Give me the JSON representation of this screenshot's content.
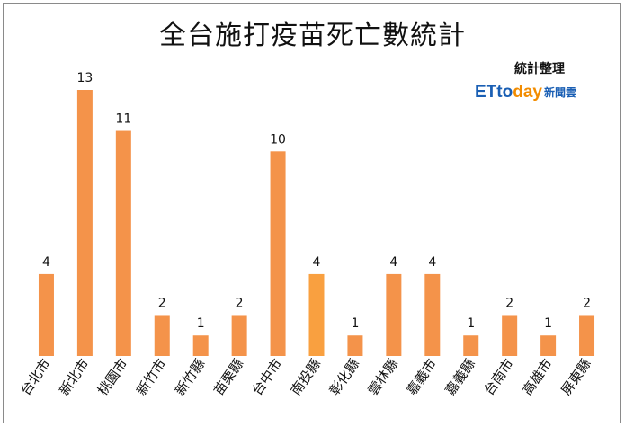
{
  "chart_data": {
    "type": "bar",
    "title": "全台施打疫苗死亡數統計",
    "categories": [
      "台北市",
      "新北市",
      "桃園市",
      "新竹市",
      "新竹縣",
      "苗栗縣",
      "台中市",
      "南投縣",
      "彰化縣",
      "雲林縣",
      "嘉義市",
      "嘉義縣",
      "台南市",
      "高雄市",
      "屏東縣"
    ],
    "values": [
      4,
      13,
      11,
      2,
      1,
      2,
      10,
      4,
      1,
      4,
      4,
      1,
      2,
      1,
      2
    ],
    "ylim": [
      0,
      14
    ],
    "grid": false,
    "legend": "none",
    "colors": {
      "bar": "#f4934a",
      "bar_highlight": "#f9a040",
      "text": "#111111"
    }
  },
  "credit": "統計整理",
  "logo": {
    "part1": "ETto",
    "part2": "day",
    "part3": "新聞雲"
  }
}
